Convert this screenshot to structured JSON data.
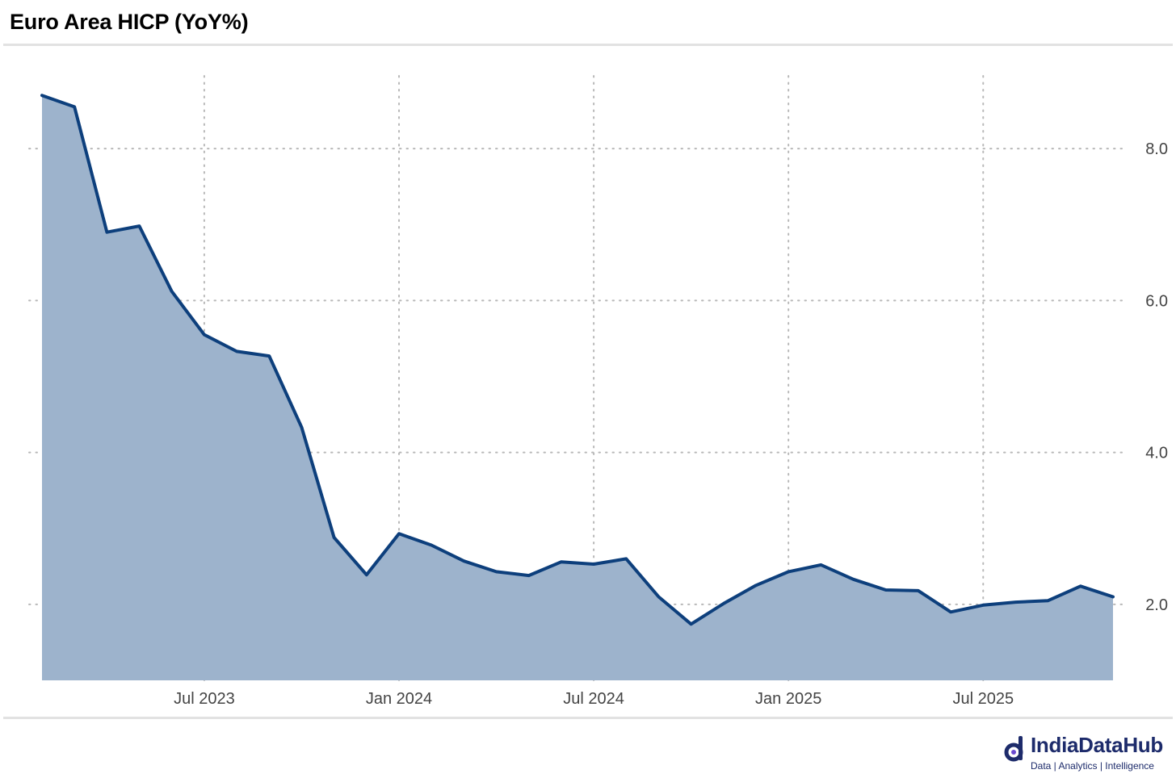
{
  "header": {
    "title": "Euro Area HICP (YoY%)"
  },
  "brand": {
    "name": "IndiaDataHub",
    "tagline": "Data | Analytics | Intelligence",
    "color": "#1d2b6b"
  },
  "chart_data": {
    "type": "area",
    "title": "Euro Area HICP (YoY%)",
    "xlabel": "",
    "ylabel": "",
    "x": [
      "2023-02",
      "2023-03",
      "2023-04",
      "2023-05",
      "2023-06",
      "2023-07",
      "2023-08",
      "2023-09",
      "2023-10",
      "2023-11",
      "2023-12",
      "2024-01",
      "2024-02",
      "2024-03",
      "2024-04",
      "2024-05",
      "2024-06",
      "2024-07",
      "2024-08",
      "2024-09",
      "2024-10",
      "2024-11",
      "2024-12",
      "2025-01",
      "2025-02",
      "2025-03",
      "2025-04",
      "2025-05",
      "2025-06",
      "2025-07",
      "2025-08",
      "2025-09",
      "2025-10",
      "2025-11"
    ],
    "series": [
      {
        "name": "",
        "values": [
          8.7,
          8.55,
          6.9,
          6.98,
          6.12,
          5.55,
          5.33,
          5.27,
          4.33,
          2.88,
          2.39,
          2.93,
          2.78,
          2.57,
          2.43,
          2.38,
          2.56,
          2.53,
          2.6,
          2.1,
          1.74,
          2.01,
          2.25,
          2.43,
          2.52,
          2.33,
          2.19,
          2.18,
          1.9,
          1.99,
          2.03,
          2.05,
          2.24,
          2.1
        ],
        "line_color": "#0d3f7c",
        "fill_color": "#9db3cc"
      }
    ],
    "x_ticks": [
      {
        "at": "2023-07",
        "label": "Jul 2023"
      },
      {
        "at": "2024-01",
        "label": "Jan 2024"
      },
      {
        "at": "2024-07",
        "label": "Jul 2024"
      },
      {
        "at": "2025-01",
        "label": "Jan 2025"
      },
      {
        "at": "2025-07",
        "label": "Jul 2025"
      }
    ],
    "y_ticks": [
      {
        "value": 2.0,
        "label": "2.0"
      },
      {
        "value": 4.0,
        "label": "4.0"
      },
      {
        "value": 6.0,
        "label": "6.0"
      },
      {
        "value": 8.0,
        "label": "8.0"
      }
    ],
    "ylim": [
      1.0,
      9.0
    ],
    "y_axis_position": "right",
    "grid": true,
    "legend": "none"
  }
}
